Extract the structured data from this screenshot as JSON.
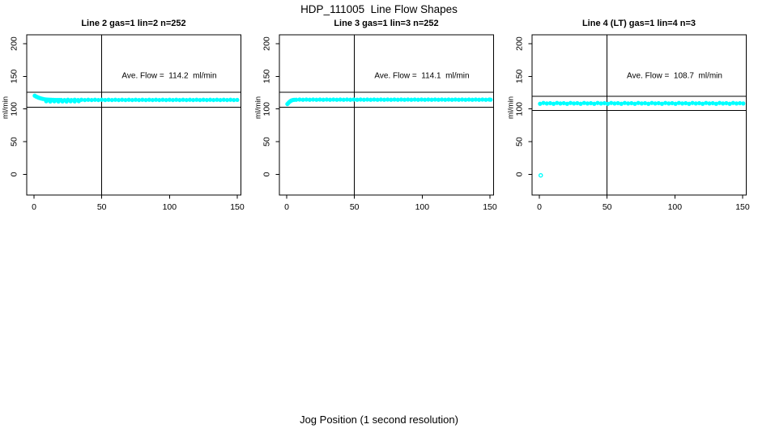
{
  "page": {
    "title": "HDP_111005  Line Flow Shapes",
    "xlabel": "Jog Position (1 second resolution)",
    "background": "#ffffff",
    "line_color": "#000000"
  },
  "chart_data": [
    {
      "type": "scatter",
      "title": "Line 2 gas=1 lin=2 n=252",
      "annotation": "Ave. Flow =  114.2  ml/min",
      "ave_flow_ml_min": 114.2,
      "n": 252,
      "ylabel": "ml/min",
      "xlim": [
        -5.4,
        152.7
      ],
      "ylim": [
        -31.6,
        213.6
      ],
      "x_ticks": [
        0,
        50,
        100,
        150
      ],
      "y_ticks": [
        0,
        50,
        100,
        150,
        200
      ],
      "vline_x": 50,
      "hlines": [
        125.6,
        102.8
      ],
      "point_color": "#00FFFF",
      "grid": false,
      "points": [
        [
          0.5,
          120.4
        ],
        [
          1.5,
          119.2
        ],
        [
          2.5,
          118.2
        ],
        [
          3.5,
          117.3
        ],
        [
          4.5,
          116.6
        ],
        [
          5.5,
          116.0
        ],
        [
          6.5,
          115.5
        ],
        [
          8,
          114.9
        ],
        [
          9.5,
          114.6
        ],
        [
          11,
          114.4
        ],
        [
          12.5,
          114.2
        ],
        [
          14,
          114.1
        ],
        [
          15.5,
          114.0
        ],
        [
          17,
          114.0
        ],
        [
          18.5,
          113.9
        ],
        [
          20,
          113.9
        ],
        [
          22.5,
          113.8
        ],
        [
          25,
          114.2
        ],
        [
          27.5,
          113.8
        ],
        [
          30,
          114.2
        ],
        [
          32.5,
          113.8
        ],
        [
          35,
          114.2
        ],
        [
          37.5,
          113.8
        ],
        [
          40,
          114.2
        ],
        [
          42.5,
          113.8
        ],
        [
          45,
          114.2
        ],
        [
          47.5,
          113.8
        ],
        [
          50,
          114.2
        ],
        [
          52.5,
          113.8
        ],
        [
          55,
          114.2
        ],
        [
          57.5,
          113.8
        ],
        [
          60,
          114.2
        ],
        [
          62.5,
          113.8
        ],
        [
          65,
          114.2
        ],
        [
          67.5,
          113.8
        ],
        [
          70,
          114.2
        ],
        [
          72.5,
          113.8
        ],
        [
          75,
          114.2
        ],
        [
          77.5,
          113.8
        ],
        [
          80,
          114.2
        ],
        [
          82.5,
          113.8
        ],
        [
          85,
          114.2
        ],
        [
          87.5,
          113.8
        ],
        [
          90,
          114.2
        ],
        [
          92.5,
          113.8
        ],
        [
          95,
          114.2
        ],
        [
          97.5,
          113.8
        ],
        [
          100,
          114.2
        ],
        [
          102.5,
          113.8
        ],
        [
          105,
          114.2
        ],
        [
          107.5,
          113.8
        ],
        [
          110,
          114.2
        ],
        [
          112.5,
          113.8
        ],
        [
          115,
          114.2
        ],
        [
          117.5,
          113.8
        ],
        [
          120,
          114.2
        ],
        [
          122.5,
          113.8
        ],
        [
          125,
          114.2
        ],
        [
          127.5,
          113.8
        ],
        [
          130,
          114.2
        ],
        [
          132.5,
          113.8
        ],
        [
          135,
          114.2
        ],
        [
          137.5,
          113.8
        ],
        [
          140,
          114.2
        ],
        [
          142.5,
          113.8
        ],
        [
          145,
          114.2
        ],
        [
          147.5,
          113.8
        ],
        [
          150,
          114.0
        ],
        [
          9,
          111.9
        ],
        [
          12,
          111.6
        ],
        [
          15,
          111.8
        ],
        [
          18,
          111.5
        ],
        [
          21,
          111.7
        ],
        [
          24,
          111.6
        ],
        [
          27,
          111.9
        ],
        [
          30,
          111.7
        ],
        [
          33,
          112.0
        ]
      ],
      "open_points": []
    },
    {
      "type": "scatter",
      "title": "Line 3 gas=1 lin=3 n=252",
      "annotation": "Ave. Flow =  114.1  ml/min",
      "ave_flow_ml_min": 114.1,
      "n": 252,
      "ylabel": "ml/min",
      "xlim": [
        -5.4,
        152.7
      ],
      "ylim": [
        -31.6,
        213.6
      ],
      "x_ticks": [
        0,
        50,
        100,
        150
      ],
      "y_ticks": [
        0,
        50,
        100,
        150,
        200
      ],
      "vline_x": 50,
      "hlines": [
        125.5,
        102.7
      ],
      "point_color": "#00FFFF",
      "grid": false,
      "points": [
        [
          0.5,
          107.6
        ],
        [
          1.2,
          109.2
        ],
        [
          2,
          110.9
        ],
        [
          2.8,
          112.2
        ],
        [
          3.6,
          113.2
        ],
        [
          4.5,
          113.8
        ],
        [
          5.5,
          114.1
        ],
        [
          7,
          114.2
        ],
        [
          9.5,
          114.5
        ],
        [
          12,
          114.2
        ],
        [
          14.5,
          114.5
        ],
        [
          17,
          114.2
        ],
        [
          19.5,
          114.5
        ],
        [
          22,
          114.2
        ],
        [
          24.5,
          114.5
        ],
        [
          27,
          114.2
        ],
        [
          29.5,
          114.5
        ],
        [
          32,
          114.2
        ],
        [
          34.5,
          114.5
        ],
        [
          37,
          114.2
        ],
        [
          39.5,
          114.5
        ],
        [
          42,
          114.2
        ],
        [
          44.5,
          114.5
        ],
        [
          47,
          114.2
        ],
        [
          49.5,
          114.5
        ],
        [
          52,
          114.2
        ],
        [
          54.5,
          114.5
        ],
        [
          57,
          114.2
        ],
        [
          59.5,
          114.5
        ],
        [
          62,
          114.2
        ],
        [
          64.5,
          114.5
        ],
        [
          67,
          114.2
        ],
        [
          69.5,
          114.5
        ],
        [
          72,
          114.2
        ],
        [
          74.5,
          114.5
        ],
        [
          77,
          114.2
        ],
        [
          79.5,
          114.5
        ],
        [
          82,
          114.2
        ],
        [
          84.5,
          114.5
        ],
        [
          87,
          114.2
        ],
        [
          89.5,
          114.5
        ],
        [
          92,
          114.2
        ],
        [
          94.5,
          114.5
        ],
        [
          97,
          114.2
        ],
        [
          99.5,
          114.5
        ],
        [
          102,
          114.2
        ],
        [
          104.5,
          114.5
        ],
        [
          107,
          114.2
        ],
        [
          109.5,
          114.5
        ],
        [
          112,
          114.2
        ],
        [
          114.5,
          114.5
        ],
        [
          117,
          114.2
        ],
        [
          119.5,
          114.5
        ],
        [
          122,
          114.2
        ],
        [
          124.5,
          114.5
        ],
        [
          127,
          114.2
        ],
        [
          129.5,
          114.5
        ],
        [
          132,
          114.2
        ],
        [
          134.5,
          114.5
        ],
        [
          137,
          114.2
        ],
        [
          139.5,
          114.5
        ],
        [
          142,
          114.2
        ],
        [
          144.5,
          114.5
        ],
        [
          147,
          114.2
        ],
        [
          149.5,
          114.5
        ],
        [
          150.5,
          114.3
        ]
      ],
      "open_points": []
    },
    {
      "type": "scatter",
      "title": "Line 4 (LT) gas=1 lin=4 n=3",
      "annotation": "Ave. Flow =  108.7  ml/min",
      "ave_flow_ml_min": 108.7,
      "n": 3,
      "ylabel": "ml/min",
      "xlim": [
        -5.4,
        152.7
      ],
      "ylim": [
        -31.6,
        213.6
      ],
      "x_ticks": [
        0,
        50,
        100,
        150
      ],
      "y_ticks": [
        0,
        50,
        100,
        150,
        200
      ],
      "vline_x": 50,
      "hlines": [
        119.6,
        97.8
      ],
      "point_color": "#00FFFF",
      "grid": false,
      "points": [
        [
          0.5,
          108.0
        ],
        [
          3,
          109.3
        ],
        [
          5.5,
          108.5
        ],
        [
          8,
          109.0
        ],
        [
          10.5,
          108.0
        ],
        [
          13,
          109.3
        ],
        [
          15.5,
          108.5
        ],
        [
          18,
          109.0
        ],
        [
          20.5,
          108.0
        ],
        [
          23,
          109.3
        ],
        [
          25.5,
          108.5
        ],
        [
          28,
          109.0
        ],
        [
          30.5,
          108.0
        ],
        [
          33,
          109.3
        ],
        [
          35.5,
          108.5
        ],
        [
          38,
          109.0
        ],
        [
          40.5,
          108.0
        ],
        [
          43,
          109.3
        ],
        [
          45.5,
          108.5
        ],
        [
          48,
          109.0
        ],
        [
          50.5,
          108.0
        ],
        [
          53,
          109.3
        ],
        [
          55.5,
          108.5
        ],
        [
          58,
          109.0
        ],
        [
          60.5,
          108.0
        ],
        [
          63,
          109.3
        ],
        [
          65.5,
          108.5
        ],
        [
          68,
          109.0
        ],
        [
          70.5,
          108.0
        ],
        [
          73,
          109.3
        ],
        [
          75.5,
          108.5
        ],
        [
          78,
          109.0
        ],
        [
          80.5,
          108.0
        ],
        [
          83,
          109.3
        ],
        [
          85.5,
          108.5
        ],
        [
          88,
          109.0
        ],
        [
          90.5,
          108.0
        ],
        [
          93,
          109.3
        ],
        [
          95.5,
          108.5
        ],
        [
          98,
          109.0
        ],
        [
          100.5,
          108.0
        ],
        [
          103,
          109.3
        ],
        [
          105.5,
          108.5
        ],
        [
          108,
          109.0
        ],
        [
          110.5,
          108.0
        ],
        [
          113,
          109.3
        ],
        [
          115.5,
          108.5
        ],
        [
          118,
          109.0
        ],
        [
          120.5,
          108.0
        ],
        [
          123,
          109.3
        ],
        [
          125.5,
          108.5
        ],
        [
          128,
          109.0
        ],
        [
          130.5,
          108.0
        ],
        [
          133,
          109.3
        ],
        [
          135.5,
          108.5
        ],
        [
          138,
          109.0
        ],
        [
          140.5,
          108.0
        ],
        [
          143,
          109.3
        ],
        [
          145.5,
          108.5
        ],
        [
          148,
          109.0
        ],
        [
          150.5,
          108.5
        ]
      ],
      "open_points": [
        [
          1,
          -1.5
        ]
      ]
    }
  ]
}
